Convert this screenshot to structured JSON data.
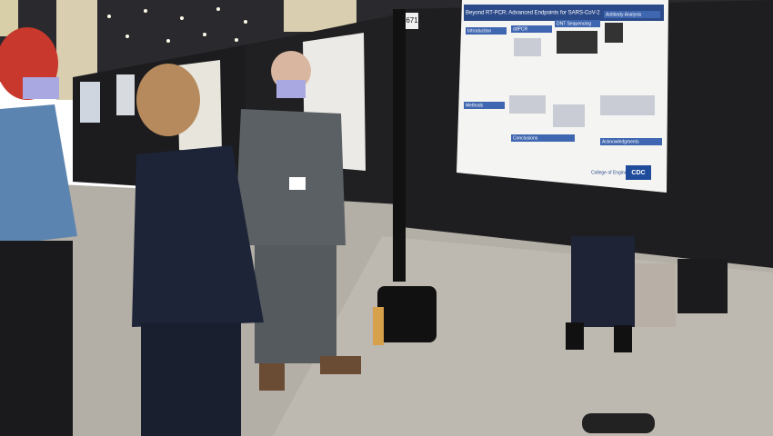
{
  "board_number": "671",
  "poster": {
    "title": "Beyond RT-PCR: Advanced Endpoints for SARS-CoV-2",
    "sections": [
      "Introduction",
      "ddPCR",
      "DNT Sequencing",
      "Antibody Analysis",
      "Methods",
      "Conclusions",
      "Acknowledgments"
    ],
    "logos": [
      "College of Engineering",
      "CDC"
    ]
  }
}
